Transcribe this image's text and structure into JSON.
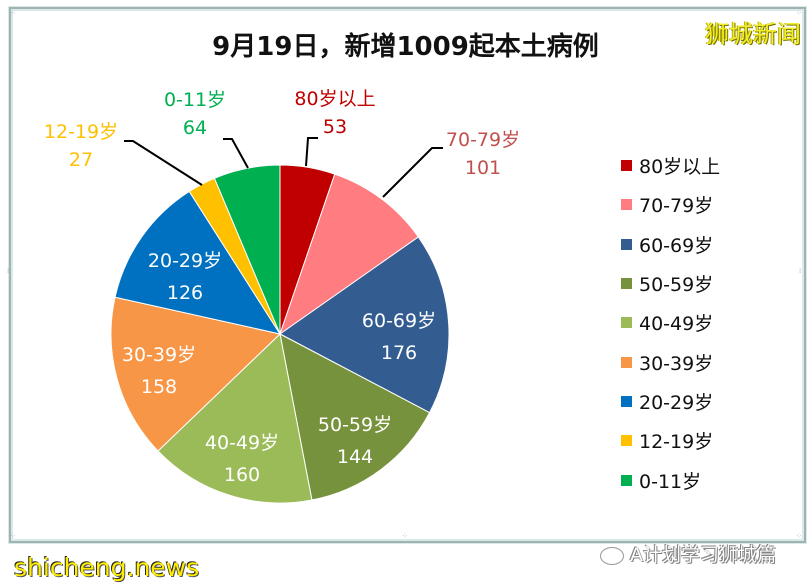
{
  "header": {
    "title": "9月19日，新增1009起本土病例",
    "brand": "狮城新闻"
  },
  "footer": {
    "site": "shicheng.news",
    "wechat_account": "A计划学习狮城篇"
  },
  "chart_data": {
    "type": "pie",
    "title": "9月19日，新增1009起本土病例",
    "total": 1009,
    "start_angle": "12 o'clock, clockwise",
    "legend_position": "right",
    "categories": [
      "80岁以上",
      "70-79岁",
      "60-69岁",
      "50-59岁",
      "40-49岁",
      "30-39岁",
      "20-29岁",
      "12-19岁",
      "0-11岁"
    ],
    "values": [
      53,
      101,
      176,
      144,
      160,
      158,
      126,
      27,
      64
    ],
    "colors": [
      "#c00000",
      "#ff7c80",
      "#335c91",
      "#76923c",
      "#9bbb59",
      "#f79646",
      "#0070c0",
      "#ffc000",
      "#00b050"
    ],
    "data_labels": [
      {
        "name": "80岁以上",
        "value": "53",
        "placement": "outside",
        "color": "#c00000"
      },
      {
        "name": "70-79岁",
        "value": "101",
        "placement": "outside",
        "color": "#c0504d"
      },
      {
        "name": "60-69岁",
        "value": "176",
        "placement": "inside",
        "color": "#ffffff"
      },
      {
        "name": "50-59岁",
        "value": "144",
        "placement": "inside",
        "color": "#ffffff"
      },
      {
        "name": "40-49岁",
        "value": "160",
        "placement": "inside",
        "color": "#ffffff"
      },
      {
        "name": "30-39岁",
        "value": "158",
        "placement": "inside",
        "color": "#ffffff"
      },
      {
        "name": "20-29岁",
        "value": "126",
        "placement": "inside",
        "color": "#ffffff"
      },
      {
        "name": "12-19岁",
        "value": "27",
        "placement": "outside",
        "color": "#ffc000"
      },
      {
        "name": "0-11岁",
        "value": "64",
        "placement": "outside",
        "color": "#00b050"
      }
    ]
  }
}
